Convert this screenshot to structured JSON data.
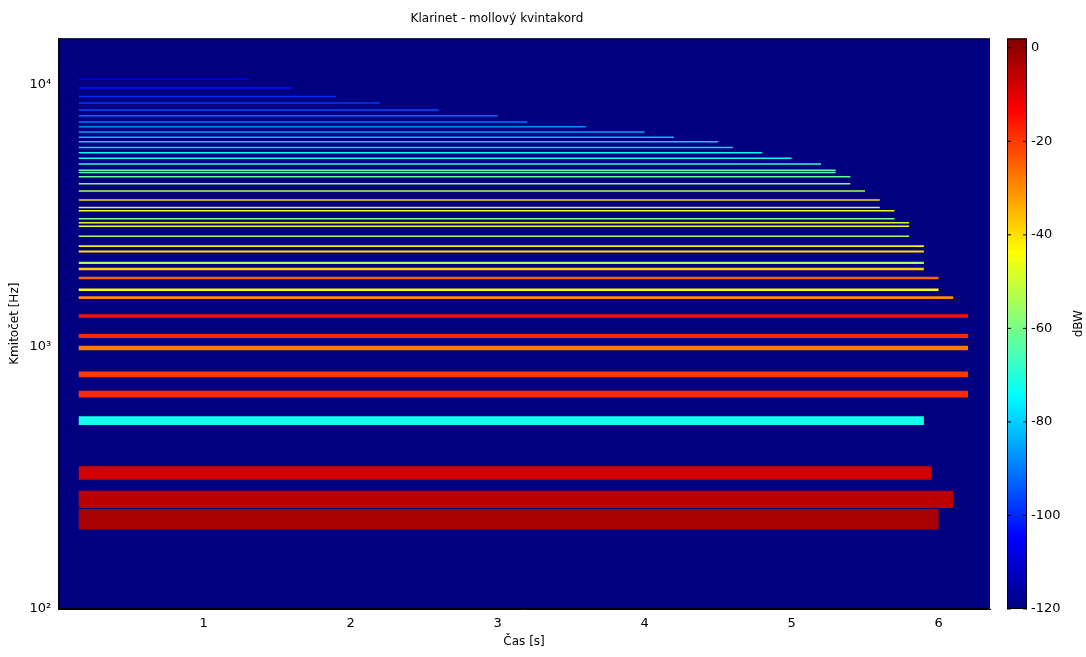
{
  "chart_data": {
    "type": "spectrogram",
    "title": "Klarinet - mollový kvintakord",
    "x_label": "Čas [s]",
    "y_label": "Kmitočet [Hz]",
    "xlim": [
      0.01,
      6.35
    ],
    "xticks": [
      1,
      2,
      3,
      4,
      5,
      6
    ],
    "ylim": [
      100,
      15000
    ],
    "yticks": [
      {
        "value": 100,
        "label": "10²"
      },
      {
        "value": 1000,
        "label": "10³"
      },
      {
        "value": 10000,
        "label": "10⁴"
      }
    ],
    "log": "y",
    "grid": false,
    "colorbar": {
      "label": "dBW",
      "range": [
        -120,
        2
      ],
      "ticks": [
        0,
        -20,
        -40,
        -60,
        -80,
        -100,
        -120
      ]
    },
    "partials": [
      {
        "frequency": 220,
        "level": -3,
        "start": 0.15,
        "end": 6.0
      },
      {
        "frequency": 262,
        "level": -5,
        "start": 0.15,
        "end": 6.1
      },
      {
        "frequency": 330,
        "level": -8,
        "start": 0.15,
        "end": 5.95
      },
      {
        "frequency": 523,
        "level": -72,
        "start": 0.15,
        "end": 5.9
      },
      {
        "frequency": 660,
        "level": -18,
        "start": 0.15,
        "end": 6.2
      },
      {
        "frequency": 785,
        "level": -20,
        "start": 0.15,
        "end": 6.2
      },
      {
        "frequency": 990,
        "level": -28,
        "start": 0.15,
        "end": 6.2
      },
      {
        "frequency": 1100,
        "level": -18,
        "start": 0.15,
        "end": 6.2
      },
      {
        "frequency": 1310,
        "level": -15,
        "start": 0.15,
        "end": 6.2
      },
      {
        "frequency": 1540,
        "level": -30,
        "start": 0.15,
        "end": 6.1
      },
      {
        "frequency": 1650,
        "level": -45,
        "start": 0.15,
        "end": 6.0
      },
      {
        "frequency": 1830,
        "level": -25,
        "start": 0.15,
        "end": 6.0
      },
      {
        "frequency": 1980,
        "level": -38,
        "start": 0.15,
        "end": 5.9
      },
      {
        "frequency": 2090,
        "level": -55,
        "start": 0.15,
        "end": 5.9
      },
      {
        "frequency": 2310,
        "level": -40,
        "start": 0.15,
        "end": 5.9
      },
      {
        "frequency": 2420,
        "level": -42,
        "start": 0.15,
        "end": 5.9
      },
      {
        "frequency": 2640,
        "level": -55,
        "start": 0.15,
        "end": 5.8
      },
      {
        "frequency": 2880,
        "level": -45,
        "start": 0.15,
        "end": 5.8
      },
      {
        "frequency": 2970,
        "level": -50,
        "start": 0.15,
        "end": 5.8
      },
      {
        "frequency": 3080,
        "level": -60,
        "start": 0.15,
        "end": 5.7
      },
      {
        "frequency": 3300,
        "level": -45,
        "start": 0.15,
        "end": 5.7
      },
      {
        "frequency": 3400,
        "level": -48,
        "start": 0.15,
        "end": 5.6
      },
      {
        "frequency": 3630,
        "level": -40,
        "start": 0.15,
        "end": 5.6
      },
      {
        "frequency": 3925,
        "level": -55,
        "start": 0.15,
        "end": 5.5
      },
      {
        "frequency": 4190,
        "level": -58,
        "start": 0.15,
        "end": 5.4
      },
      {
        "frequency": 4450,
        "level": -62,
        "start": 0.15,
        "end": 5.4
      },
      {
        "frequency": 4620,
        "level": -65,
        "start": 0.15,
        "end": 5.3
      },
      {
        "frequency": 4710,
        "level": -62,
        "start": 0.15,
        "end": 5.3
      },
      {
        "frequency": 4980,
        "level": -68,
        "start": 0.15,
        "end": 5.2
      },
      {
        "frequency": 5240,
        "level": -72,
        "start": 0.15,
        "end": 5.0
      },
      {
        "frequency": 5500,
        "level": -75,
        "start": 0.15,
        "end": 4.8
      },
      {
        "frequency": 5760,
        "level": -78,
        "start": 0.15,
        "end": 4.6
      },
      {
        "frequency": 6050,
        "level": -80,
        "start": 0.15,
        "end": 4.5
      },
      {
        "frequency": 6300,
        "level": -82,
        "start": 0.15,
        "end": 4.2
      },
      {
        "frequency": 6600,
        "level": -85,
        "start": 0.15,
        "end": 4.0
      },
      {
        "frequency": 6900,
        "level": -88,
        "start": 0.15,
        "end": 3.6
      },
      {
        "frequency": 7200,
        "level": -90,
        "start": 0.15,
        "end": 3.2
      },
      {
        "frequency": 7600,
        "level": -92,
        "start": 0.15,
        "end": 3.0
      },
      {
        "frequency": 8000,
        "level": -95,
        "start": 0.15,
        "end": 2.6
      },
      {
        "frequency": 8500,
        "level": -98,
        "start": 0.15,
        "end": 2.2
      },
      {
        "frequency": 9000,
        "level": -100,
        "start": 0.15,
        "end": 1.9
      },
      {
        "frequency": 9700,
        "level": -102,
        "start": 0.15,
        "end": 1.6
      },
      {
        "frequency": 10500,
        "level": -105,
        "start": 0.15,
        "end": 1.3
      }
    ]
  }
}
